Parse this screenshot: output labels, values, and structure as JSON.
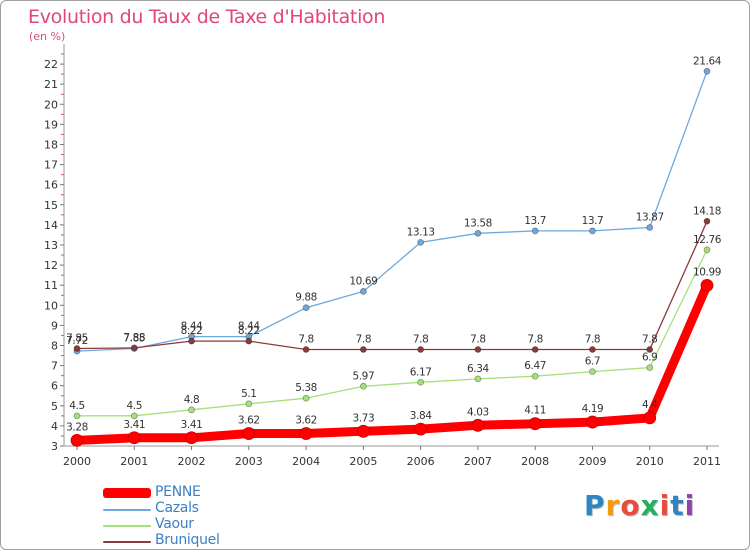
{
  "title": "Evolution du Taux de Taxe d'Habitation",
  "subtitle": "(en %)",
  "chart_data": {
    "type": "line",
    "title": "Evolution du Taux de Taxe d'Habitation",
    "ylabel": "(en %)",
    "x": [
      "2000",
      "2001",
      "2002",
      "2003",
      "2004",
      "2005",
      "2006",
      "2007",
      "2008",
      "2009",
      "2010",
      "2011"
    ],
    "y_ticks": [
      3,
      4,
      5,
      6,
      7,
      8,
      9,
      10,
      11,
      12,
      13,
      14,
      15,
      16,
      17,
      18,
      19,
      20,
      21,
      22
    ],
    "ylim": [
      3,
      22.7
    ],
    "grid": false,
    "legend_position": "bottom-left",
    "series": [
      {
        "name": "PENNE",
        "color": "#ff0000",
        "values": [
          3.28,
          3.41,
          3.41,
          3.62,
          3.62,
          3.73,
          3.84,
          4.03,
          4.11,
          4.19,
          4.4,
          10.99
        ],
        "labels": [
          "3.28",
          "3.41",
          "3.41",
          "3.62",
          "3.62",
          "3.73",
          "3.84",
          "4.03",
          "4.11",
          "4.19",
          "4.4",
          "10.99"
        ]
      },
      {
        "name": "Cazals",
        "color": "#6fa8dc",
        "values": [
          7.72,
          7.85,
          8.44,
          8.44,
          9.88,
          10.69,
          13.13,
          13.58,
          13.7,
          13.7,
          13.87,
          21.64
        ],
        "labels": [
          "7.72",
          "7.85",
          "8.44",
          "8.44",
          "9.88",
          "10.69",
          "13.13",
          "13.58",
          "13.7",
          "13.7",
          "13.87",
          "21.64"
        ]
      },
      {
        "name": "Vaour",
        "color": "#a6e07a",
        "values": [
          4.5,
          4.5,
          4.8,
          5.1,
          5.38,
          5.97,
          6.17,
          6.34,
          6.47,
          6.7,
          6.9,
          12.76
        ],
        "labels": [
          "4.5",
          "4.5",
          "4.8",
          "5.1",
          "5.38",
          "5.97",
          "6.17",
          "6.34",
          "6.47",
          "6.7",
          "6.9",
          "12.76"
        ]
      },
      {
        "name": "Bruniquel",
        "color": "#8b3a3a",
        "values": [
          7.85,
          7.88,
          8.22,
          8.22,
          7.8,
          7.8,
          7.8,
          7.8,
          7.8,
          7.8,
          7.8,
          14.18
        ],
        "labels": [
          "7.85",
          "7.88",
          "8.22",
          "8.22",
          "7.8",
          "7.8",
          "7.8",
          "7.8",
          "7.8",
          "7.8",
          "7.8",
          "14.18"
        ]
      }
    ]
  },
  "legend": {
    "items": [
      {
        "label": "PENNE",
        "color": "#ff0000"
      },
      {
        "label": "Cazals",
        "color": "#6fa8dc"
      },
      {
        "label": "Vaour",
        "color": "#a6e07a"
      },
      {
        "label": "Bruniquel",
        "color": "#8b3a3a"
      }
    ]
  },
  "logo": {
    "letters": [
      "P",
      "r",
      "o",
      "x",
      "i",
      "t",
      "i"
    ],
    "colors": [
      "#2e86c1",
      "#f39c12",
      "#e74c3c",
      "#27ae60",
      "#e74c3c",
      "#2e86c1",
      "#8e44ad"
    ]
  }
}
